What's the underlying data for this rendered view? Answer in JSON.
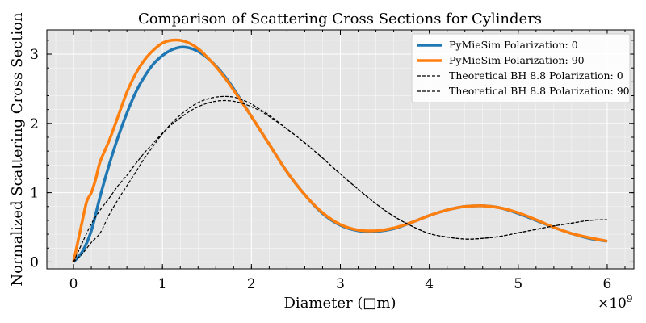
{
  "chart_data": {
    "type": "line",
    "title": "Comparison of Scattering Cross Sections for Cylinders",
    "xlabel": "Diameter (□m)",
    "ylabel": "Normalized Scattering Cross Section",
    "x_multiplier": "×10",
    "x_multiplier_exp": "9",
    "xlim": [
      -0.3,
      6.3
    ],
    "ylim": [
      -0.1,
      3.35
    ],
    "xticks": [
      0,
      1,
      2,
      3,
      4,
      5,
      6
    ],
    "yticks": [
      0,
      1,
      2,
      3
    ],
    "grid": true,
    "legend_position": "top-right",
    "series": [
      {
        "name": "PyMieSim Polarization: 0",
        "color": "#1f77b4",
        "style": "solid",
        "x": [
          0,
          0.1,
          0.2,
          0.3,
          0.4,
          0.5,
          0.6,
          0.7,
          0.8,
          0.9,
          1.0,
          1.1,
          1.2,
          1.3,
          1.4,
          1.5,
          1.6,
          1.7,
          1.8,
          2.0,
          2.2,
          2.4,
          2.6,
          2.8,
          3.0,
          3.2,
          3.4,
          3.6,
          3.8,
          4.0,
          4.2,
          4.4,
          4.6,
          4.8,
          5.0,
          5.2,
          5.4,
          5.6,
          5.8,
          6.0
        ],
        "y": [
          0,
          0.15,
          0.45,
          0.95,
          1.4,
          1.8,
          2.15,
          2.45,
          2.68,
          2.86,
          2.98,
          3.06,
          3.1,
          3.09,
          3.04,
          2.95,
          2.83,
          2.68,
          2.5,
          2.1,
          1.7,
          1.3,
          0.97,
          0.7,
          0.53,
          0.45,
          0.44,
          0.48,
          0.57,
          0.67,
          0.75,
          0.8,
          0.81,
          0.78,
          0.7,
          0.6,
          0.5,
          0.41,
          0.34,
          0.3
        ]
      },
      {
        "name": "PyMieSim Polarization: 90",
        "color": "#ff7f0e",
        "style": "solid",
        "x": [
          0,
          0.05,
          0.1,
          0.15,
          0.2,
          0.25,
          0.3,
          0.4,
          0.5,
          0.6,
          0.7,
          0.8,
          0.9,
          1.0,
          1.1,
          1.2,
          1.3,
          1.4,
          1.5,
          1.6,
          1.7,
          1.8,
          2.0,
          2.2,
          2.4,
          2.6,
          2.8,
          3.0,
          3.2,
          3.4,
          3.6,
          3.8,
          4.0,
          4.2,
          4.4,
          4.6,
          4.8,
          5.0,
          5.2,
          5.4,
          5.6,
          5.8,
          6.0
        ],
        "y": [
          0,
          0.3,
          0.6,
          0.88,
          1.0,
          1.2,
          1.45,
          1.75,
          2.1,
          2.45,
          2.72,
          2.92,
          3.06,
          3.16,
          3.2,
          3.2,
          3.16,
          3.08,
          2.96,
          2.82,
          2.66,
          2.48,
          2.1,
          1.7,
          1.3,
          0.97,
          0.71,
          0.54,
          0.46,
          0.45,
          0.49,
          0.57,
          0.67,
          0.75,
          0.8,
          0.81,
          0.78,
          0.71,
          0.61,
          0.5,
          0.41,
          0.35,
          0.3
        ]
      },
      {
        "name": "Theoretical BH 8.8 Polarization: 0",
        "color": "#000000",
        "style": "dashed",
        "x": [
          0,
          0.1,
          0.2,
          0.3,
          0.4,
          0.5,
          0.6,
          0.7,
          0.8,
          0.9,
          1.0,
          1.1,
          1.2,
          1.3,
          1.4,
          1.5,
          1.6,
          1.7,
          1.8,
          1.9,
          2.0,
          2.1,
          2.2,
          2.4,
          2.6,
          2.8,
          3.0,
          3.2,
          3.4,
          3.6,
          3.8,
          4.0,
          4.2,
          4.4,
          4.6,
          4.8,
          5.0,
          5.2,
          5.4,
          5.6,
          5.8,
          6.0
        ],
        "y": [
          0,
          0.28,
          0.55,
          0.75,
          0.92,
          1.1,
          1.25,
          1.42,
          1.58,
          1.72,
          1.86,
          1.98,
          2.08,
          2.17,
          2.24,
          2.29,
          2.32,
          2.33,
          2.32,
          2.29,
          2.24,
          2.18,
          2.1,
          1.92,
          1.72,
          1.5,
          1.27,
          1.05,
          0.84,
          0.66,
          0.52,
          0.41,
          0.36,
          0.33,
          0.34,
          0.37,
          0.42,
          0.47,
          0.52,
          0.56,
          0.6,
          0.61
        ]
      },
      {
        "name": "Theoretical BH 8.8 Polarization: 90",
        "color": "#000000",
        "style": "dashed",
        "x": [
          0,
          0.1,
          0.2,
          0.3,
          0.4,
          0.5,
          0.6,
          0.7,
          0.8,
          0.9,
          1.0,
          1.1,
          1.2,
          1.3,
          1.4,
          1.5,
          1.6,
          1.7,
          1.8,
          1.9,
          2.0,
          2.1,
          2.2,
          2.4,
          2.6,
          2.8,
          3.0,
          3.2,
          3.4,
          3.6,
          3.8,
          4.0,
          4.2,
          4.4,
          4.6,
          4.8,
          5.0,
          5.2,
          5.4,
          5.6,
          5.8,
          6.0
        ],
        "y": [
          0,
          0.12,
          0.28,
          0.42,
          0.68,
          0.9,
          1.1,
          1.3,
          1.5,
          1.68,
          1.85,
          2.0,
          2.12,
          2.22,
          2.3,
          2.35,
          2.38,
          2.39,
          2.38,
          2.34,
          2.28,
          2.2,
          2.12,
          1.92,
          1.72,
          1.5,
          1.27,
          1.05,
          0.84,
          0.66,
          0.52,
          0.41,
          0.36,
          0.33,
          0.34,
          0.37,
          0.42,
          0.47,
          0.52,
          0.56,
          0.6,
          0.61
        ]
      }
    ]
  }
}
